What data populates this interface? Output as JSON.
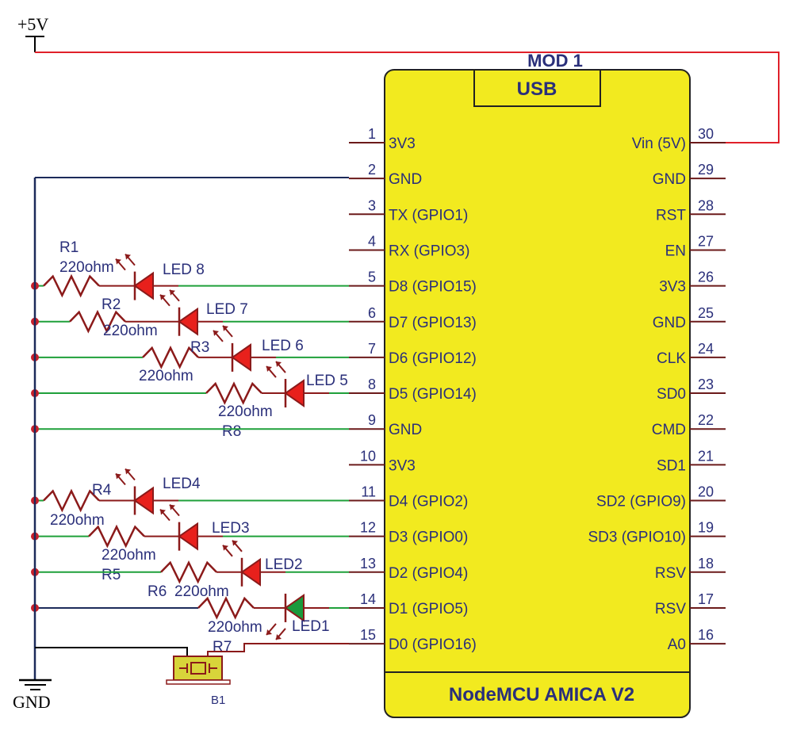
{
  "power_label": "+5V",
  "ground_label": "GND",
  "module": {
    "ref": "MOD 1",
    "usb_label": "USB",
    "name": "NodeMCU AMICA V2",
    "fill_color": "#f2ea1f",
    "left_pins": [
      {
        "num": "1",
        "label": "3V3"
      },
      {
        "num": "2",
        "label": "GND"
      },
      {
        "num": "3",
        "label": "TX (GPIO1)"
      },
      {
        "num": "4",
        "label": "RX (GPIO3)"
      },
      {
        "num": "5",
        "label": "D8 (GPIO15)"
      },
      {
        "num": "6",
        "label": "D7 (GPIO13)"
      },
      {
        "num": "7",
        "label": "D6 (GPIO12)"
      },
      {
        "num": "8",
        "label": "D5 (GPIO14)"
      },
      {
        "num": "9",
        "label": "GND"
      },
      {
        "num": "10",
        "label": "3V3"
      },
      {
        "num": "11",
        "label": "D4 (GPIO2)"
      },
      {
        "num": "12",
        "label": "D3 (GPIO0)"
      },
      {
        "num": "13",
        "label": "D2 (GPIO4)"
      },
      {
        "num": "14",
        "label": "D1 (GPIO5)"
      },
      {
        "num": "15",
        "label": "D0 (GPIO16)"
      }
    ],
    "right_pins": [
      {
        "num": "30",
        "label": "Vin (5V)"
      },
      {
        "num": "29",
        "label": "GND"
      },
      {
        "num": "28",
        "label": "RST"
      },
      {
        "num": "27",
        "label": "EN"
      },
      {
        "num": "26",
        "label": "3V3"
      },
      {
        "num": "25",
        "label": "GND"
      },
      {
        "num": "24",
        "label": "CLK"
      },
      {
        "num": "23",
        "label": "SD0"
      },
      {
        "num": "22",
        "label": "CMD"
      },
      {
        "num": "21",
        "label": "SD1"
      },
      {
        "num": "20",
        "label": "SD2 (GPIO9)"
      },
      {
        "num": "19",
        "label": "SD3 (GPIO10)"
      },
      {
        "num": "18",
        "label": "RSV"
      },
      {
        "num": "17",
        "label": "RSV"
      },
      {
        "num": "16",
        "label": "A0"
      }
    ]
  },
  "components": [
    {
      "pin": 5,
      "res": "R1",
      "value": "220ohm",
      "led": "LED 8",
      "led_color": "#e8201c"
    },
    {
      "pin": 6,
      "res": "R2",
      "value": "220ohm",
      "led": "LED 7",
      "led_color": "#e8201c"
    },
    {
      "pin": 7,
      "res": "R3",
      "value": "220ohm",
      "led": "LED 6",
      "led_color": "#e8201c"
    },
    {
      "pin": 8,
      "res": "R8",
      "value": "220ohm",
      "led": "LED 5",
      "led_color": "#e8201c"
    },
    {
      "pin": 11,
      "res": "R4",
      "value": "220ohm",
      "led": "LED4",
      "led_color": "#e8201c"
    },
    {
      "pin": 12,
      "res": "R5",
      "value": "220ohm",
      "led": "LED3",
      "led_color": "#e8201c"
    },
    {
      "pin": 13,
      "res": "R6",
      "value": "220ohm",
      "led": "LED2",
      "led_color": "#e8201c"
    },
    {
      "pin": 14,
      "res": "R7",
      "value": "220ohm",
      "led": "LED1",
      "led_color": "#1a9a3c"
    }
  ],
  "button": {
    "ref": "B1"
  },
  "colors": {
    "power_wire": "#e0202a",
    "signal_wire": "#1fa03a",
    "component": "#8b1a1a",
    "ground_wire": "#1c2a5a",
    "junction": "#c8202a"
  }
}
